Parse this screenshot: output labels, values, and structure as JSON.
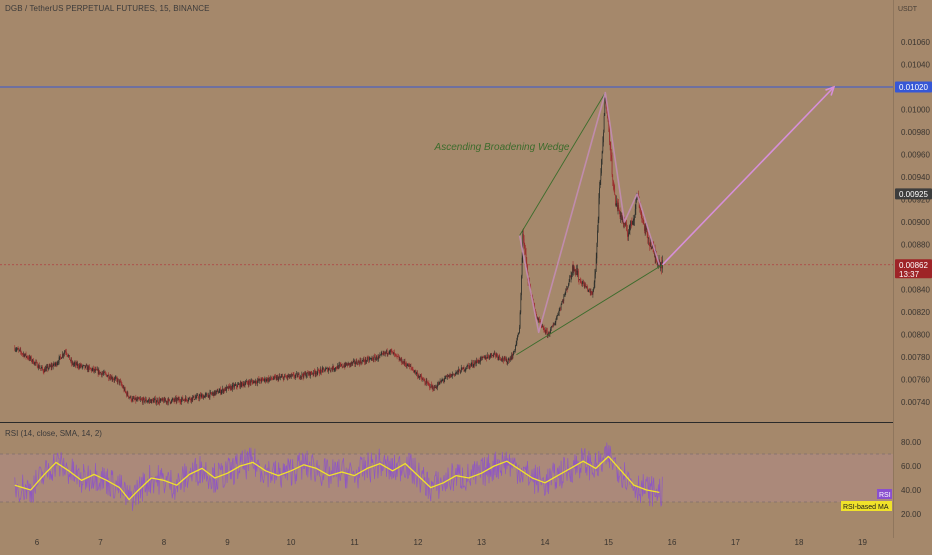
{
  "header": {
    "symbol": "DGB / TetherUS PERPETUAL FUTURES, 15, BINANCE",
    "currency": "USDT"
  },
  "rsi_panel": {
    "legend": "RSI (14, close, SMA, 14, 2)",
    "rsi_tag": "RSI",
    "ma_tag": "RSI-based MA"
  },
  "annotations": {
    "pattern_label": "Ascending Broadening Wedge"
  },
  "price_tags": {
    "target": "0.01020",
    "mid": "0.00925",
    "current": "0.00862",
    "countdown": "13:37"
  },
  "colors": {
    "background": "#a5886b",
    "candle_up": "#2d2f2b",
    "candle_down": "#9b2a2c",
    "wedge_lines": "#3c6c2c",
    "path_line": "#c38db4",
    "projection_arrow": "#d68fd9",
    "target_line": "#3657d6",
    "current_line": "#b13f40",
    "rsi_line": "#8a4fcf",
    "rsi_ma": "#f0e22a",
    "label_green": "#3c6c2c"
  },
  "chart_data": [
    {
      "type": "candlestick",
      "title": "DGB / TetherUS PERPETUAL FUTURES, 15, BINANCE",
      "x_ticks": [
        "6",
        "7",
        "8",
        "9",
        "10",
        "11",
        "12",
        "13",
        "14",
        "15",
        "16",
        "17",
        "18",
        "19"
      ],
      "y_ticks": [
        "0.00740",
        "0.00760",
        "0.00780",
        "0.00800",
        "0.00820",
        "0.00840",
        "0.00860",
        "0.00880",
        "0.00900",
        "0.00920",
        "0.00940",
        "0.00960",
        "0.00980",
        "0.01000",
        "0.01020",
        "0.01040",
        "0.01060"
      ],
      "ylim": [
        0.0072,
        0.0108
      ],
      "price_path": [
        [
          5.65,
          0.00788
        ],
        [
          5.9,
          0.00778
        ],
        [
          6.1,
          0.00768
        ],
        [
          6.3,
          0.00774
        ],
        [
          6.45,
          0.00786
        ],
        [
          6.55,
          0.00774
        ],
        [
          6.8,
          0.0077
        ],
        [
          7.1,
          0.00764
        ],
        [
          7.3,
          0.00758
        ],
        [
          7.4,
          0.00748
        ],
        [
          7.5,
          0.00742
        ],
        [
          7.8,
          0.00741
        ],
        [
          8.1,
          0.00741
        ],
        [
          8.4,
          0.00743
        ],
        [
          8.7,
          0.00746
        ],
        [
          9.0,
          0.00752
        ],
        [
          9.3,
          0.00757
        ],
        [
          9.6,
          0.0076
        ],
        [
          9.9,
          0.00762
        ],
        [
          10.2,
          0.00764
        ],
        [
          10.5,
          0.00768
        ],
        [
          10.8,
          0.00772
        ],
        [
          11.1,
          0.00776
        ],
        [
          11.4,
          0.0078
        ],
        [
          11.55,
          0.00786
        ],
        [
          11.7,
          0.00778
        ],
        [
          11.9,
          0.0077
        ],
        [
          12.1,
          0.00758
        ],
        [
          12.25,
          0.00752
        ],
        [
          12.4,
          0.0076
        ],
        [
          12.6,
          0.00766
        ],
        [
          12.8,
          0.00772
        ],
        [
          13.0,
          0.00778
        ],
        [
          13.2,
          0.00783
        ],
        [
          13.4,
          0.00776
        ],
        [
          13.5,
          0.00782
        ],
        [
          13.6,
          0.00805
        ],
        [
          13.65,
          0.00888
        ],
        [
          13.75,
          0.00845
        ],
        [
          13.85,
          0.00818
        ],
        [
          13.95,
          0.00806
        ],
        [
          14.05,
          0.008
        ],
        [
          14.15,
          0.0081
        ],
        [
          14.25,
          0.00826
        ],
        [
          14.35,
          0.00842
        ],
        [
          14.45,
          0.00862
        ],
        [
          14.55,
          0.00848
        ],
        [
          14.65,
          0.00842
        ],
        [
          14.75,
          0.00835
        ],
        [
          14.8,
          0.0086
        ],
        [
          14.85,
          0.0092
        ],
        [
          14.9,
          0.0096
        ],
        [
          14.95,
          0.01015
        ],
        [
          15.0,
          0.00985
        ],
        [
          15.05,
          0.0095
        ],
        [
          15.1,
          0.0092
        ],
        [
          15.2,
          0.00905
        ],
        [
          15.3,
          0.0089
        ],
        [
          15.4,
          0.00905
        ],
        [
          15.45,
          0.00925
        ],
        [
          15.5,
          0.00912
        ],
        [
          15.55,
          0.00898
        ],
        [
          15.65,
          0.00882
        ],
        [
          15.75,
          0.00868
        ],
        [
          15.85,
          0.00862
        ]
      ],
      "wedge": {
        "upper": [
          [
            13.6,
            0.00888
          ],
          [
            14.95,
            0.01015
          ]
        ],
        "lower": [
          [
            13.55,
            0.00782
          ],
          [
            15.85,
            0.00862
          ]
        ]
      },
      "highlight_path": [
        [
          13.6,
          0.00888
        ],
        [
          13.9,
          0.00802
        ],
        [
          14.95,
          0.01015
        ],
        [
          15.25,
          0.009
        ],
        [
          15.45,
          0.00925
        ],
        [
          15.8,
          0.00862
        ]
      ],
      "projection": [
        [
          15.85,
          0.00862
        ],
        [
          18.55,
          0.0102
        ]
      ],
      "levels": {
        "target": 0.0102,
        "current": 0.00862
      }
    },
    {
      "type": "line",
      "title": "RSI (14, close, SMA, 14, 2)",
      "y_ticks": [
        "20.00",
        "40.00",
        "60.00",
        "80.00"
      ],
      "ylim": [
        10,
        90
      ],
      "band": [
        30,
        70
      ],
      "series": [
        {
          "name": "RSI-based MA",
          "x": [
            5.65,
            5.9,
            6.1,
            6.3,
            6.5,
            6.7,
            6.9,
            7.1,
            7.3,
            7.45,
            7.6,
            7.8,
            8.0,
            8.2,
            8.4,
            8.6,
            8.8,
            9.0,
            9.2,
            9.4,
            9.6,
            9.8,
            10.0,
            10.2,
            10.4,
            10.6,
            10.8,
            11.0,
            11.2,
            11.4,
            11.6,
            11.8,
            12.0,
            12.2,
            12.4,
            12.6,
            12.8,
            13.0,
            13.2,
            13.4,
            13.6,
            13.8,
            14.0,
            14.2,
            14.4,
            14.6,
            14.8,
            15.0,
            15.2,
            15.4,
            15.6,
            15.8
          ],
          "values": [
            44,
            40,
            52,
            63,
            56,
            48,
            53,
            48,
            42,
            32,
            40,
            50,
            48,
            44,
            53,
            58,
            50,
            54,
            60,
            63,
            56,
            52,
            56,
            61,
            58,
            52,
            55,
            52,
            58,
            62,
            56,
            62,
            52,
            42,
            46,
            52,
            50,
            54,
            60,
            64,
            57,
            50,
            46,
            52,
            58,
            64,
            58,
            68,
            56,
            44,
            40,
            38
          ]
        }
      ]
    }
  ]
}
